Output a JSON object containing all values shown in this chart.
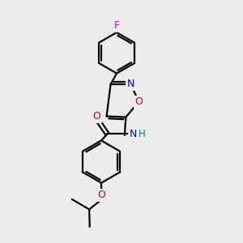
{
  "background_color": "#ececec",
  "bond_color": "#000000",
  "N_color": "#0000cc",
  "O_color": "#cc0000",
  "F_color": "#cc00cc",
  "H_color": "#008080",
  "line_width": 1.6,
  "figsize": [
    3.0,
    3.0
  ],
  "dpi": 100,
  "xlim": [
    0,
    10
  ],
  "ylim": [
    0,
    10
  ]
}
